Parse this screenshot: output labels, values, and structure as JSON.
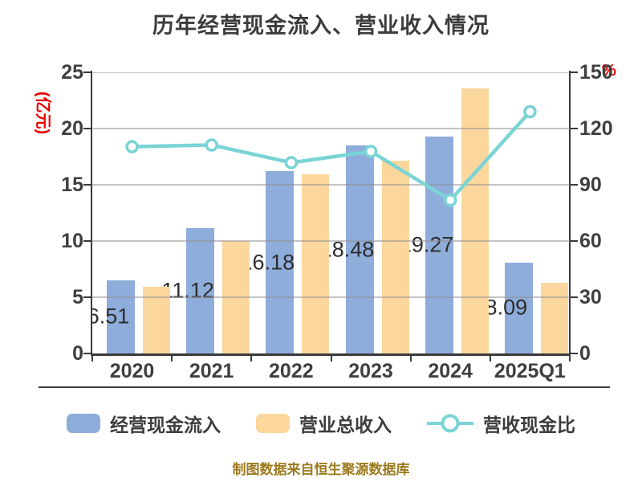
{
  "title": "历年经营现金流入、营业收入情况",
  "footer": "制图数据来自恒生聚源数据库",
  "chart_data": {
    "type": "bar+line",
    "categories": [
      "2020",
      "2021",
      "2022",
      "2023",
      "2024",
      "2025Q1"
    ],
    "series": [
      {
        "name": "经营现金流入",
        "type": "bar",
        "axis": "left",
        "color": "#8eaddb",
        "values": [
          6.51,
          11.12,
          16.18,
          18.48,
          19.27,
          8.09
        ],
        "labels_visible": true
      },
      {
        "name": "营业总收入",
        "type": "bar",
        "axis": "left",
        "color": "#fbd79d",
        "values": [
          5.9,
          10.0,
          15.9,
          17.15,
          23.55,
          6.27
        ],
        "labels_visible": false
      },
      {
        "name": "营收现金比",
        "type": "line",
        "axis": "right",
        "color": "#7ad4d5",
        "marker": "circle-white-fill",
        "values": [
          110.3,
          111.2,
          101.8,
          107.8,
          81.8,
          129.0
        ],
        "labels_visible": false
      }
    ],
    "left_axis": {
      "unit": "(亿元)",
      "unit_color": "#e80000",
      "min": 0,
      "max": 25,
      "ticks": [
        0,
        5,
        10,
        15,
        20,
        25
      ]
    },
    "right_axis": {
      "unit": "%",
      "unit_color": "#e80000",
      "min": 0,
      "max": 150,
      "ticks": [
        0,
        30,
        60,
        90,
        120,
        150
      ]
    },
    "grid": true,
    "legend_position": "bottom",
    "title_color": "#3c3c3c",
    "footer_color": "#9d7a1e"
  }
}
